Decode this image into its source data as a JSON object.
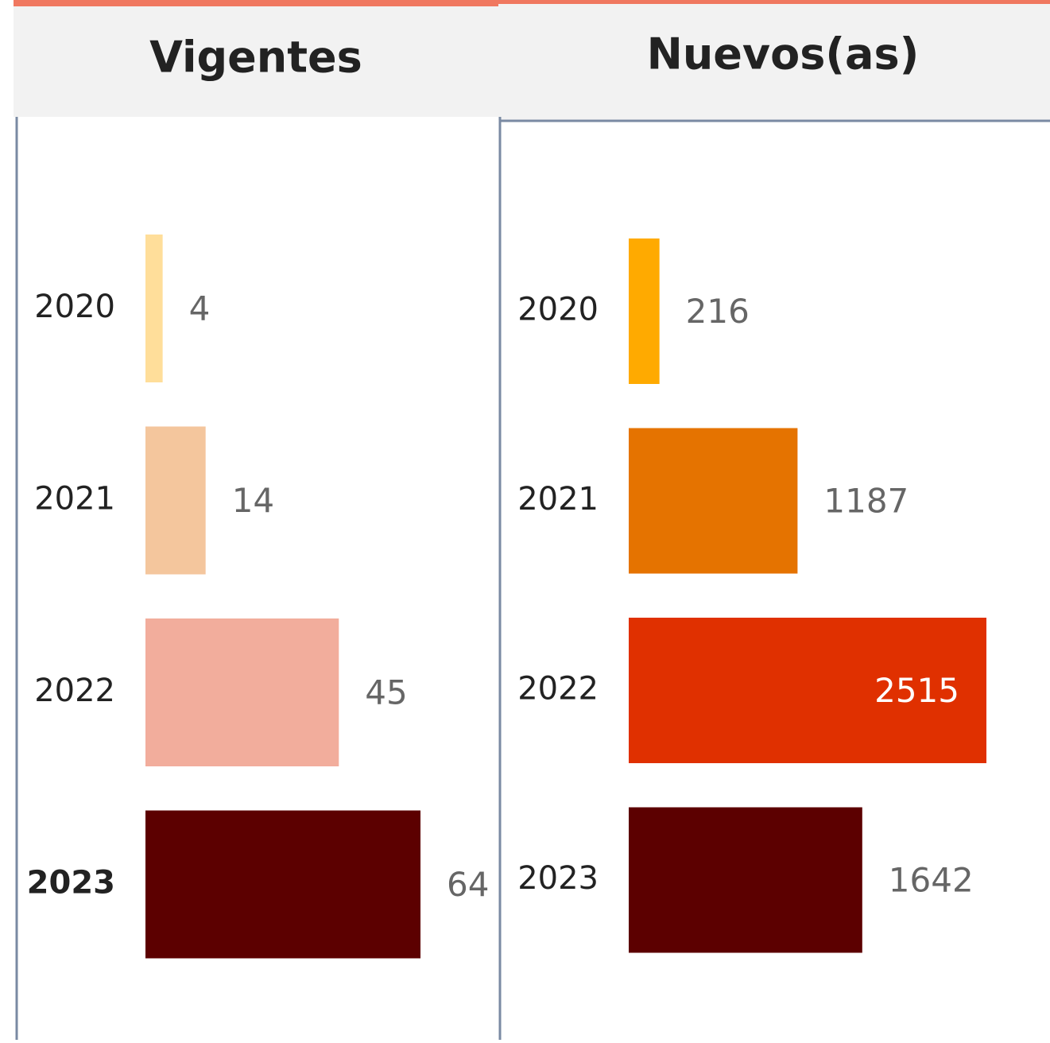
{
  "chart_data": [
    {
      "type": "bar",
      "title": "Vigentes",
      "categories": [
        "2020",
        "2021",
        "2022",
        "2023"
      ],
      "values": [
        4,
        14,
        45,
        64
      ],
      "colors": [
        "#FFDE9A",
        "#F4C69D",
        "#F2AD9C",
        "#5C0000"
      ],
      "highlight_index": 3
    },
    {
      "type": "bar",
      "title": "Nuevos(as)",
      "categories": [
        "2020",
        "2021",
        "2022",
        "2023"
      ],
      "values": [
        216,
        1187,
        2515,
        1642
      ],
      "colors": [
        "#FFAA00",
        "#E57300",
        "#E03000",
        "#5C0000"
      ]
    }
  ]
}
